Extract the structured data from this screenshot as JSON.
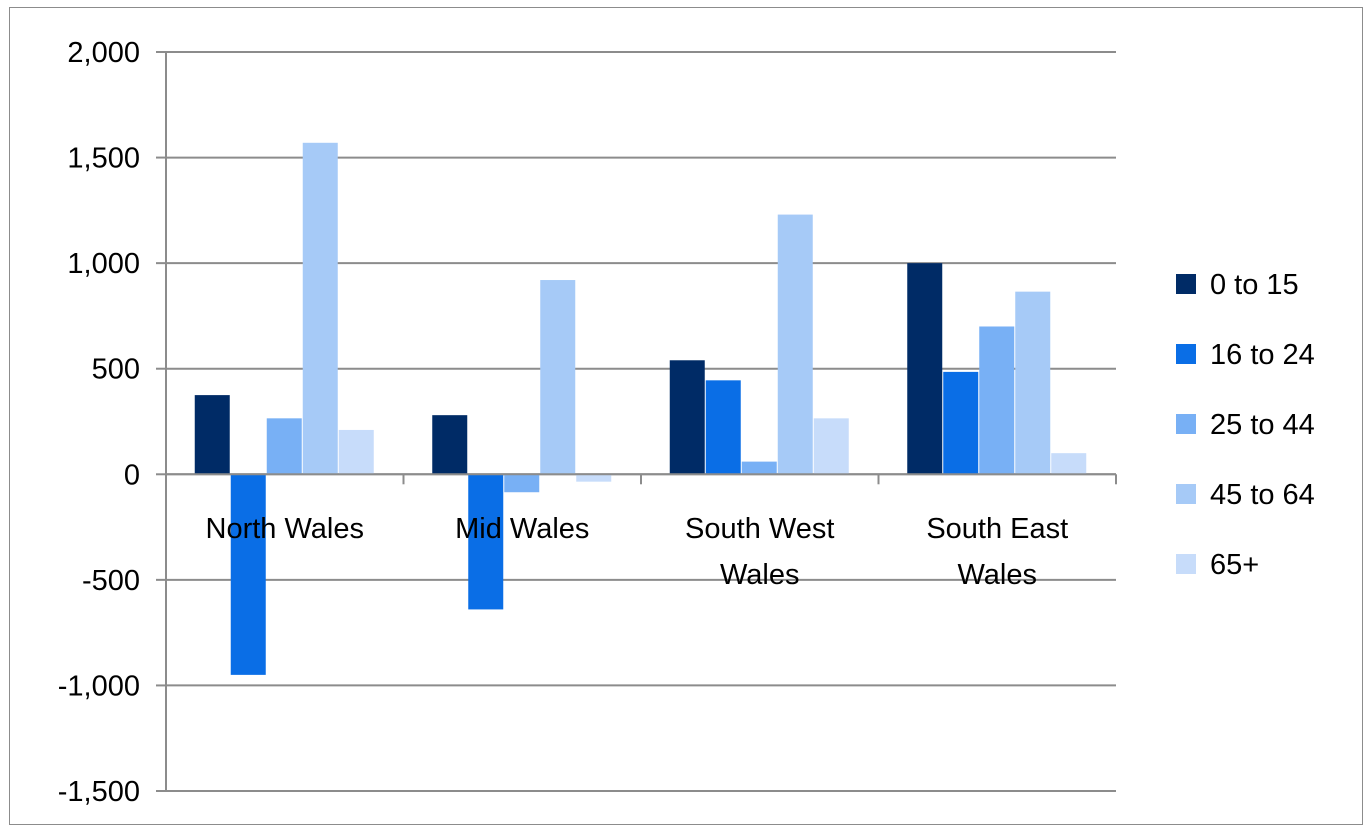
{
  "chart_data": {
    "type": "bar",
    "categories": [
      "North Wales",
      "Mid Wales",
      "South West Wales",
      "South East Wales"
    ],
    "category_lines": [
      [
        "North Wales"
      ],
      [
        "Mid Wales"
      ],
      [
        "South West",
        "Wales"
      ],
      [
        "South East",
        "Wales"
      ]
    ],
    "series": [
      {
        "name": "0 to 15",
        "color": "#002b66",
        "values": [
          375,
          280,
          540,
          1000
        ]
      },
      {
        "name": "16 to 24",
        "color": "#0a6ee6",
        "values": [
          -950,
          -640,
          445,
          485
        ]
      },
      {
        "name": "25 to 44",
        "color": "#78b0f5",
        "values": [
          265,
          -85,
          60,
          700
        ]
      },
      {
        "name": "45 to 64",
        "color": "#a6caf7",
        "values": [
          1570,
          920,
          1230,
          865
        ]
      },
      {
        "name": "65+",
        "color": "#c7dcfa",
        "values": [
          210,
          -35,
          265,
          100
        ]
      }
    ],
    "yticks": [
      2000,
      1500,
      1000,
      500,
      0,
      -500,
      -1000,
      -1500
    ],
    "ytick_labels": [
      "2,000",
      "1,500",
      "1,000",
      "500",
      "0",
      "-500",
      "-1,000",
      "-1,500"
    ],
    "ylim": [
      -1500,
      2000
    ],
    "title": "",
    "xlabel": "",
    "ylabel": "",
    "grid": true,
    "legend_position": "right"
  }
}
